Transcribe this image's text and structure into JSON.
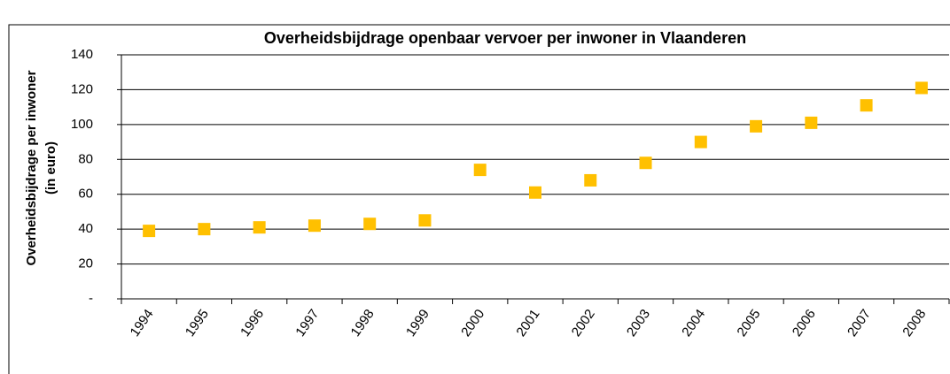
{
  "chart_data": {
    "type": "scatter",
    "title": "Overheidsbijdrage openbaar vervoer per inwoner in Vlaanderen",
    "ylabel": [
      "Overheidsbijdrage per inwoner",
      "(in euro)"
    ],
    "categories": [
      "1994",
      "1995",
      "1996",
      "1997",
      "1998",
      "1999",
      "2000",
      "2001",
      "2002",
      "2003",
      "2004",
      "2005",
      "2006",
      "2007",
      "2008"
    ],
    "values": [
      39,
      40,
      41,
      42,
      43,
      45,
      74,
      61,
      68,
      78,
      90,
      99,
      101,
      111,
      121
    ],
    "color": "#ffc000",
    "ylim": [
      0,
      140
    ],
    "yticks": [
      {
        "value": 0,
        "label": "-"
      },
      20,
      40,
      60,
      80,
      100,
      120,
      140
    ],
    "grid": true
  }
}
